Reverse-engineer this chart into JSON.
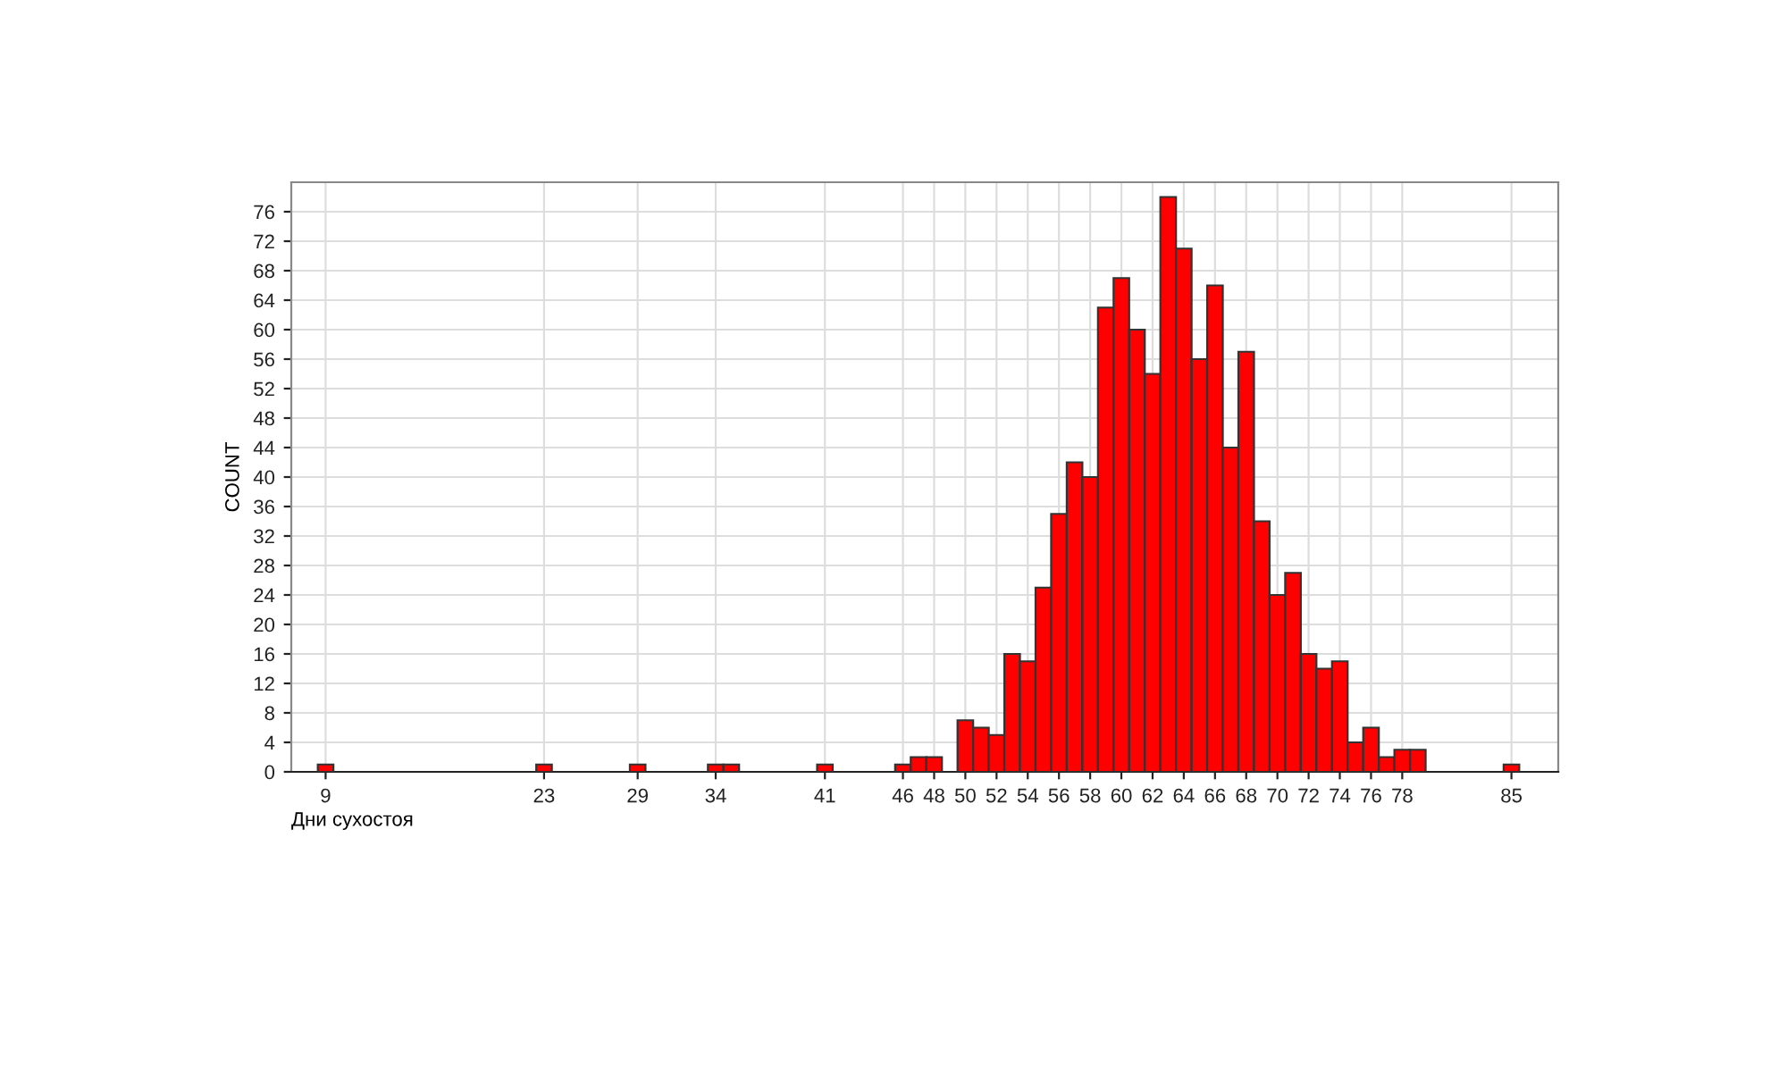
{
  "chart_data": {
    "type": "histogram",
    "xlabel": "Дни сухостоя",
    "ylabel": "COUNT",
    "bins": [
      8.5,
      9.5,
      10.5,
      11.5,
      12.5,
      13.5,
      14.5,
      15.5,
      16.5,
      17.5,
      18.5,
      19.5,
      20.5,
      21.5,
      22.5,
      23.5,
      24.5,
      25.5,
      26.5,
      27.5,
      28.5,
      29.5,
      30.5,
      31.5,
      32.5,
      33.5,
      34.5,
      35.5,
      36.5,
      37.5,
      38.5,
      39.5,
      40.5,
      41.5,
      42.5,
      43.5,
      44.5,
      45.5,
      46.5,
      47.5,
      48.5,
      49.5,
      50.5,
      51.5,
      52.5,
      53.5,
      54.5,
      55.5,
      56.5,
      57.5,
      58.5,
      59.5,
      60.5,
      61.5,
      62.5,
      63.5,
      64.5,
      65.5,
      66.5,
      67.5,
      68.5,
      69.5,
      70.5,
      71.5,
      72.5,
      73.5,
      74.5,
      75.5,
      76.5,
      77.5,
      78.5,
      79.5,
      80.5,
      81.5,
      82.5,
      83.5,
      84.5,
      85.5
    ],
    "values": [
      1,
      0,
      0,
      0,
      0,
      0,
      0,
      0,
      0,
      0,
      0,
      0,
      0,
      0,
      1,
      0,
      0,
      0,
      0,
      0,
      1,
      0,
      0,
      0,
      0,
      1,
      1,
      0,
      0,
      0,
      0,
      0,
      1,
      0,
      0,
      0,
      0,
      1,
      2,
      2,
      0,
      7,
      6,
      5,
      16,
      15,
      25,
      35,
      42,
      40,
      63,
      67,
      60,
      54,
      78,
      71,
      56,
      66,
      44,
      57,
      34,
      24,
      27,
      16,
      14,
      15,
      4,
      6,
      2,
      3,
      3,
      0,
      0,
      0,
      0,
      0,
      1
    ],
    "color": "#ff0000",
    "xlim": [
      6.8,
      88
    ],
    "ylim": [
      0,
      80
    ],
    "xticks": [
      9,
      23,
      29,
      34,
      41,
      46,
      48,
      50,
      52,
      54,
      56,
      58,
      60,
      62,
      64,
      66,
      68,
      70,
      72,
      74,
      76,
      78,
      85
    ],
    "yticks": [
      0,
      4,
      8,
      12,
      16,
      20,
      24,
      28,
      32,
      36,
      40,
      44,
      48,
      52,
      56,
      60,
      64,
      68,
      72,
      76
    ],
    "grid": true,
    "legend": false
  }
}
